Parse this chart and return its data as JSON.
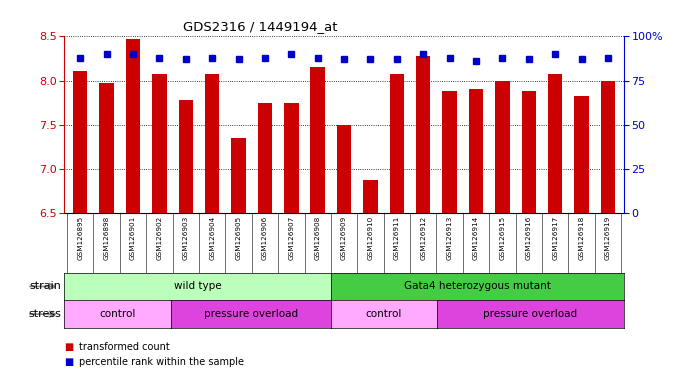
{
  "title": "GDS2316 / 1449194_at",
  "samples": [
    "GSM126895",
    "GSM126898",
    "GSM126901",
    "GSM126902",
    "GSM126903",
    "GSM126904",
    "GSM126905",
    "GSM126906",
    "GSM126907",
    "GSM126908",
    "GSM126909",
    "GSM126910",
    "GSM126911",
    "GSM126912",
    "GSM126913",
    "GSM126914",
    "GSM126915",
    "GSM126916",
    "GSM126917",
    "GSM126918",
    "GSM126919"
  ],
  "transformed_count": [
    8.11,
    7.97,
    8.47,
    8.08,
    7.78,
    8.07,
    7.35,
    7.75,
    7.75,
    8.15,
    7.5,
    6.87,
    8.07,
    8.28,
    7.88,
    7.9,
    8.0,
    7.88,
    8.08,
    7.83,
    8.0
  ],
  "percentile_rank": [
    88,
    90,
    90,
    88,
    87,
    88,
    87,
    88,
    90,
    88,
    87,
    87,
    87,
    90,
    88,
    86,
    88,
    87,
    90,
    87,
    88
  ],
  "ylim_left": [
    6.5,
    8.5
  ],
  "ylim_right": [
    0,
    100
  ],
  "yticks_left": [
    6.5,
    7.0,
    7.5,
    8.0,
    8.5
  ],
  "yticks_right": [
    0,
    25,
    50,
    75,
    100
  ],
  "bar_color": "#cc0000",
  "dot_color": "#0000cc",
  "strain_groups": [
    {
      "label": "wild type",
      "start": 0,
      "end": 10,
      "color": "#bbffbb"
    },
    {
      "label": "Gata4 heterozygous mutant",
      "start": 10,
      "end": 21,
      "color": "#44cc44"
    }
  ],
  "stress_groups": [
    {
      "label": "control",
      "start": 0,
      "end": 4,
      "color": "#ffaaff"
    },
    {
      "label": "pressure overload",
      "start": 4,
      "end": 10,
      "color": "#dd44dd"
    },
    {
      "label": "control",
      "start": 10,
      "end": 14,
      "color": "#ffaaff"
    },
    {
      "label": "pressure overload",
      "start": 14,
      "end": 21,
      "color": "#dd44dd"
    }
  ],
  "background_color": "#ffffff"
}
